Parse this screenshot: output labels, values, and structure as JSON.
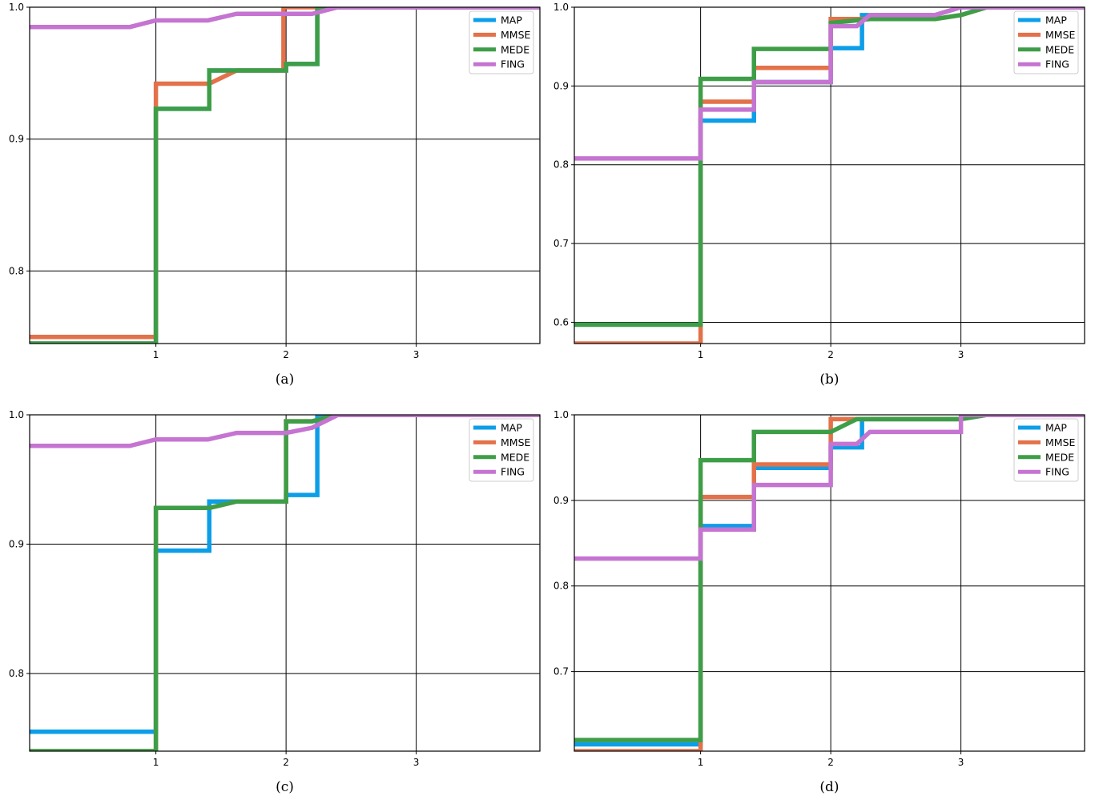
{
  "chart_data": [
    {
      "type": "line",
      "caption": "(a)",
      "title": "",
      "xlabel": "",
      "ylabel": "",
      "xlim": [
        0.03,
        3.95
      ],
      "ylim": [
        0.745,
        1.0
      ],
      "xticks": [
        1,
        2,
        3
      ],
      "xtick_labels": [
        "1",
        "2",
        "3"
      ],
      "yticks": [
        0.8,
        0.9,
        1.0
      ],
      "ytick_labels": [
        "0.8",
        "0.9",
        "1.0"
      ],
      "grid": true,
      "legend": "top-right",
      "series": [
        {
          "name": "MAP",
          "color": "#0d9ee8",
          "x": [
            0.03,
            1.0,
            1.0,
            1.41,
            1.41,
            1.62,
            2.0,
            2.0,
            2.24,
            2.24,
            2.4,
            3.95
          ],
          "y": [
            0.745,
            0.745,
            0.923,
            0.923,
            0.952,
            0.952,
            0.952,
            0.957,
            0.957,
            1.0,
            1.0,
            1.0
          ]
        },
        {
          "name": "MMSE",
          "color": "#e3714a",
          "x": [
            0.03,
            1.0,
            1.0,
            1.41,
            1.62,
            1.98,
            1.98,
            3.95
          ],
          "y": [
            0.75,
            0.75,
            0.942,
            0.942,
            0.952,
            0.952,
            1.0,
            1.0
          ]
        },
        {
          "name": "MEDE",
          "color": "#3e9e47",
          "x": [
            0.03,
            1.0,
            1.0,
            1.41,
            1.41,
            2.0,
            2.0,
            2.24,
            2.24,
            2.4,
            3.95
          ],
          "y": [
            0.745,
            0.745,
            0.923,
            0.923,
            0.952,
            0.952,
            0.957,
            0.957,
            1.0,
            1.0,
            1.0
          ]
        },
        {
          "name": "FING",
          "color": "#c574d1",
          "x": [
            0.03,
            0.8,
            1.0,
            1.4,
            1.62,
            2.0,
            2.2,
            2.4,
            3.95
          ],
          "y": [
            0.985,
            0.985,
            0.99,
            0.99,
            0.995,
            0.995,
            0.995,
            1.0,
            1.0
          ]
        }
      ]
    },
    {
      "type": "line",
      "caption": "(b)",
      "title": "",
      "xlabel": "",
      "ylabel": "",
      "xlim": [
        0.03,
        3.95
      ],
      "ylim": [
        0.573,
        1.0
      ],
      "xticks": [
        1,
        2,
        3
      ],
      "xtick_labels": [
        "1",
        "2",
        "3"
      ],
      "yticks": [
        0.6,
        0.7,
        0.8,
        0.9,
        1.0
      ],
      "ytick_labels": [
        "0.6",
        "0.7",
        "0.8",
        "0.9",
        "1.0"
      ],
      "grid": true,
      "legend": "top-right",
      "series": [
        {
          "name": "MAP",
          "color": "#0d9ee8",
          "x": [
            0.03,
            1.0,
            1.0,
            1.41,
            1.41,
            2.0,
            2.0,
            2.24,
            2.24,
            2.8,
            3.0,
            3.2,
            3.95
          ],
          "y": [
            0.597,
            0.597,
            0.856,
            0.856,
            0.905,
            0.905,
            0.948,
            0.948,
            0.99,
            0.99,
            1.0,
            1.0,
            1.0
          ]
        },
        {
          "name": "MMSE",
          "color": "#e3714a",
          "x": [
            0.03,
            1.0,
            1.0,
            1.41,
            1.41,
            2.0,
            2.0,
            2.3,
            2.8,
            3.0,
            3.2,
            3.95
          ],
          "y": [
            0.573,
            0.573,
            0.88,
            0.88,
            0.923,
            0.923,
            0.985,
            0.985,
            0.985,
            0.99,
            1.0,
            1.0
          ]
        },
        {
          "name": "MEDE",
          "color": "#3e9e47",
          "x": [
            0.03,
            1.0,
            1.0,
            1.41,
            1.41,
            2.0,
            2.0,
            2.3,
            2.8,
            3.0,
            3.2,
            3.95
          ],
          "y": [
            0.597,
            0.597,
            0.909,
            0.909,
            0.947,
            0.947,
            0.98,
            0.985,
            0.985,
            0.99,
            1.0,
            1.0
          ]
        },
        {
          "name": "FING",
          "color": "#c574d1",
          "x": [
            0.03,
            1.0,
            1.0,
            1.41,
            1.41,
            2.0,
            2.0,
            2.2,
            2.3,
            2.8,
            3.0,
            3.95
          ],
          "y": [
            0.808,
            0.808,
            0.87,
            0.87,
            0.905,
            0.905,
            0.976,
            0.976,
            0.99,
            0.99,
            1.0,
            1.0
          ]
        }
      ]
    },
    {
      "type": "line",
      "caption": "(c)",
      "title": "",
      "xlabel": "",
      "ylabel": "",
      "xlim": [
        0.03,
        3.95
      ],
      "ylim": [
        0.74,
        1.0
      ],
      "xticks": [
        1,
        2,
        3
      ],
      "xtick_labels": [
        "1",
        "2",
        "3"
      ],
      "yticks": [
        0.8,
        0.9,
        1.0
      ],
      "ytick_labels": [
        "0.8",
        "0.9",
        "1.0"
      ],
      "grid": true,
      "legend": "top-right",
      "series": [
        {
          "name": "MAP",
          "color": "#0d9ee8",
          "x": [
            0.03,
            1.0,
            1.0,
            1.41,
            1.41,
            2.0,
            2.0,
            2.24,
            2.24,
            2.4,
            3.95
          ],
          "y": [
            0.755,
            0.755,
            0.895,
            0.895,
            0.933,
            0.933,
            0.938,
            0.938,
            1.0,
            1.0,
            1.0
          ]
        },
        {
          "name": "MMSE",
          "color": "#e3714a",
          "x": [
            0.03,
            1.0,
            1.0,
            1.41,
            1.62,
            2.0,
            2.0,
            2.2,
            2.4,
            3.95
          ],
          "y": [
            0.74,
            0.74,
            0.928,
            0.928,
            0.933,
            0.933,
            0.995,
            0.995,
            1.0,
            1.0
          ]
        },
        {
          "name": "MEDE",
          "color": "#3e9e47",
          "x": [
            0.03,
            1.0,
            1.0,
            1.41,
            1.62,
            2.0,
            2.0,
            2.2,
            2.4,
            3.95
          ],
          "y": [
            0.74,
            0.74,
            0.928,
            0.928,
            0.933,
            0.933,
            0.995,
            0.995,
            1.0,
            1.0
          ]
        },
        {
          "name": "FING",
          "color": "#c574d1",
          "x": [
            0.03,
            0.8,
            1.0,
            1.4,
            1.62,
            2.0,
            2.2,
            2.4,
            3.95
          ],
          "y": [
            0.976,
            0.976,
            0.981,
            0.981,
            0.986,
            0.986,
            0.99,
            1.0,
            1.0
          ]
        }
      ]
    },
    {
      "type": "line",
      "caption": "(d)",
      "title": "",
      "xlabel": "",
      "ylabel": "",
      "xlim": [
        0.03,
        3.95
      ],
      "ylim": [
        0.607,
        1.0
      ],
      "xticks": [
        1,
        2,
        3
      ],
      "xtick_labels": [
        "1",
        "2",
        "3"
      ],
      "yticks": [
        0.7,
        0.8,
        0.9,
        1.0
      ],
      "ytick_labels": [
        "0.7",
        "0.8",
        "0.9",
        "1.0"
      ],
      "grid": true,
      "legend": "top-right",
      "series": [
        {
          "name": "MAP",
          "color": "#0d9ee8",
          "x": [
            0.03,
            1.0,
            1.0,
            1.41,
            1.41,
            2.0,
            2.0,
            2.24,
            2.24,
            3.0,
            3.2,
            3.95
          ],
          "y": [
            0.615,
            0.615,
            0.87,
            0.87,
            0.938,
            0.938,
            0.962,
            0.962,
            0.995,
            0.995,
            1.0,
            1.0
          ]
        },
        {
          "name": "MMSE",
          "color": "#e3714a",
          "x": [
            0.03,
            1.0,
            1.0,
            1.41,
            1.41,
            2.0,
            2.0,
            2.2,
            3.0,
            3.2,
            3.95
          ],
          "y": [
            0.607,
            0.607,
            0.904,
            0.904,
            0.942,
            0.942,
            0.995,
            0.995,
            0.995,
            1.0,
            1.0
          ]
        },
        {
          "name": "MEDE",
          "color": "#3e9e47",
          "x": [
            0.03,
            1.0,
            1.0,
            1.41,
            1.41,
            2.0,
            2.2,
            3.0,
            3.2,
            3.95
          ],
          "y": [
            0.62,
            0.62,
            0.947,
            0.947,
            0.98,
            0.98,
            0.995,
            0.995,
            1.0,
            1.0
          ]
        },
        {
          "name": "FING",
          "color": "#c574d1",
          "x": [
            0.03,
            1.0,
            1.0,
            1.41,
            1.41,
            2.0,
            2.0,
            2.2,
            2.3,
            3.0,
            3.0,
            3.95
          ],
          "y": [
            0.832,
            0.832,
            0.866,
            0.866,
            0.918,
            0.918,
            0.966,
            0.966,
            0.98,
            0.98,
            1.0,
            1.0
          ]
        }
      ]
    }
  ]
}
